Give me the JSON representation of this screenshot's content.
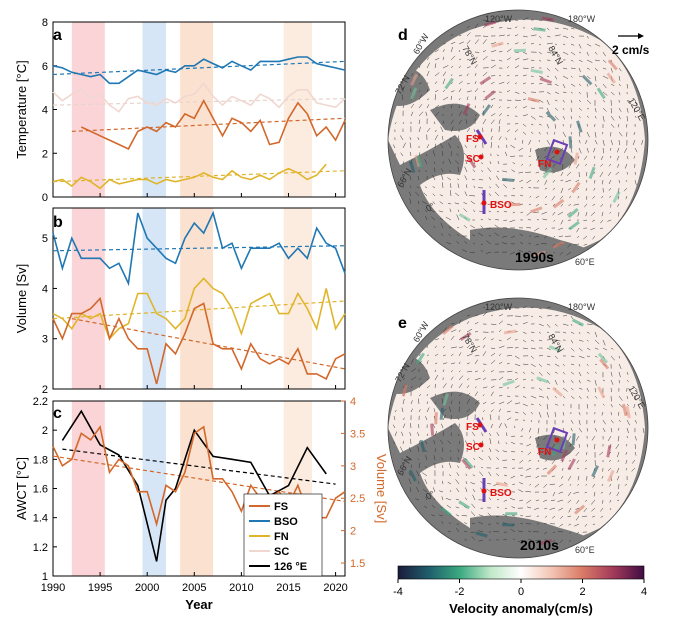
{
  "chart_data": [
    {
      "panel": "a",
      "type": "line",
      "ylabel": "Temperature [°C]",
      "ylim": [
        0,
        8
      ],
      "yticks": [
        "0",
        "2",
        "4",
        "6",
        "8"
      ],
      "xlim": [
        1990,
        2021
      ],
      "series": [
        {
          "name": "BSO",
          "color": "#1f77b4",
          "x": [
            1990,
            1991,
            1992,
            1993,
            1994,
            1995,
            1996,
            1997,
            1998,
            1999,
            2000,
            2001,
            2002,
            2003,
            2004,
            2005,
            2006,
            2007,
            2008,
            2009,
            2010,
            2011,
            2012,
            2013,
            2014,
            2015,
            2016,
            2017,
            2018,
            2019,
            2020,
            2021
          ],
          "y": [
            6.0,
            5.9,
            5.7,
            5.6,
            5.5,
            5.6,
            5.2,
            5.2,
            5.5,
            5.8,
            5.7,
            5.6,
            5.8,
            5.7,
            6.0,
            6.0,
            6.3,
            6.1,
            5.9,
            6.2,
            6.0,
            5.8,
            6.2,
            6.2,
            6.2,
            6.3,
            6.4,
            6.4,
            6.1,
            6.0,
            5.9,
            5.8
          ]
        },
        {
          "name": "SC",
          "color": "#f0d7d0",
          "x": [
            1990,
            1991,
            1992,
            1993,
            1994,
            1995,
            1996,
            1997,
            1998,
            1999,
            2000,
            2001,
            2002,
            2003,
            2004,
            2005,
            2006,
            2007,
            2008,
            2009,
            2010,
            2011,
            2012,
            2013,
            2014,
            2015,
            2016,
            2017,
            2018,
            2019,
            2020,
            2021
          ],
          "y": [
            4.8,
            4.4,
            4.7,
            4.9,
            4.5,
            4.7,
            4.2,
            3.9,
            4.5,
            4.6,
            4.3,
            4.2,
            4.5,
            4.3,
            4.6,
            4.7,
            5.2,
            4.6,
            4.2,
            4.6,
            4.4,
            4.2,
            4.7,
            4.5,
            4.1,
            4.6,
            4.9,
            4.9,
            4.3,
            4.2,
            4.1,
            4.5
          ]
        },
        {
          "name": "FS",
          "color": "#d2682b",
          "x": [
            1993,
            1994,
            1995,
            1996,
            1997,
            1998,
            1999,
            2000,
            2001,
            2002,
            2003,
            2004,
            2005,
            2006,
            2007,
            2008,
            2009,
            2010,
            2011,
            2012,
            2013,
            2014,
            2015,
            2016,
            2017,
            2018,
            2019,
            2020,
            2021
          ],
          "y": [
            3.2,
            3.0,
            2.8,
            2.6,
            2.4,
            2.2,
            3.0,
            3.2,
            3.0,
            3.4,
            3.2,
            3.8,
            3.6,
            4.4,
            3.6,
            2.8,
            3.6,
            3.4,
            3.0,
            3.5,
            2.4,
            2.5,
            3.6,
            4.3,
            3.8,
            2.8,
            3.2,
            2.6,
            3.5
          ]
        },
        {
          "name": "FN",
          "color": "#e0b52c",
          "x": [
            1990,
            1991,
            1992,
            1993,
            1994,
            1995,
            1996,
            1997,
            1998,
            1999,
            2000,
            2001,
            2002,
            2003,
            2004,
            2005,
            2006,
            2007,
            2008,
            2009,
            2010,
            2011,
            2012,
            2013,
            2014,
            2015,
            2016,
            2017,
            2018,
            2019
          ],
          "y": [
            0.7,
            0.8,
            0.5,
            0.9,
            0.7,
            0.4,
            0.8,
            0.6,
            0.7,
            0.8,
            0.8,
            0.6,
            0.8,
            0.7,
            0.8,
            0.9,
            1.1,
            0.9,
            0.8,
            1.2,
            0.9,
            0.8,
            1.0,
            0.8,
            1.1,
            1.3,
            1.1,
            0.8,
            1.0,
            1.5
          ]
        }
      ],
      "trends": [
        {
          "color": "#1f77b4",
          "x": [
            1990,
            2021
          ],
          "y": [
            5.6,
            6.2
          ]
        },
        {
          "color": "#e9d3cc",
          "x": [
            1990,
            2021
          ],
          "y": [
            4.2,
            4.5
          ]
        },
        {
          "color": "#d2682b",
          "x": [
            1992,
            2021
          ],
          "y": [
            3.0,
            3.6
          ]
        },
        {
          "color": "#e0b52c",
          "x": [
            1990,
            2021
          ],
          "y": [
            0.7,
            1.2
          ]
        }
      ]
    },
    {
      "panel": "b",
      "type": "line",
      "ylabel": "Volume [Sv]",
      "ylim": [
        2,
        5.6
      ],
      "yticks": [
        "2",
        "3",
        "4",
        "5"
      ],
      "xlim": [
        1990,
        2021
      ],
      "series": [
        {
          "name": "BSO",
          "color": "#1f77b4",
          "x": [
            1990,
            1991,
            1992,
            1993,
            1994,
            1995,
            1996,
            1997,
            1998,
            1999,
            2000,
            2001,
            2002,
            2003,
            2004,
            2005,
            2006,
            2007,
            2008,
            2009,
            2010,
            2011,
            2012,
            2013,
            2014,
            2015,
            2016,
            2017,
            2018,
            2019,
            2020,
            2021
          ],
          "y": [
            5.1,
            4.4,
            5.0,
            4.6,
            4.6,
            4.6,
            4.4,
            4.5,
            4.1,
            5.5,
            5.0,
            4.8,
            4.6,
            4.5,
            5.0,
            5.3,
            5.1,
            5.5,
            4.8,
            4.9,
            4.4,
            4.8,
            4.8,
            4.8,
            4.9,
            4.6,
            4.8,
            4.6,
            5.2,
            4.9,
            4.8,
            4.3
          ]
        },
        {
          "name": "FN",
          "color": "#e0b52c",
          "x": [
            1990,
            1991,
            1992,
            1993,
            1994,
            1995,
            1996,
            1997,
            1998,
            1999,
            2000,
            2001,
            2002,
            2003,
            2004,
            2005,
            2006,
            2007,
            2008,
            2009,
            2010,
            2011,
            2012,
            2013,
            2014,
            2015,
            2016,
            2017,
            2018,
            2019,
            2020,
            2021
          ],
          "y": [
            3.5,
            3.4,
            3.2,
            3.5,
            3.4,
            3.5,
            3.0,
            3.2,
            3.3,
            3.9,
            3.9,
            3.5,
            3.4,
            3.2,
            3.4,
            4.0,
            4.2,
            4.0,
            3.9,
            3.6,
            3.1,
            3.7,
            3.8,
            3.9,
            3.5,
            3.5,
            3.9,
            3.6,
            3.2,
            4.0,
            3.2,
            3.5
          ]
        },
        {
          "name": "FS",
          "color": "#d2682b",
          "x": [
            1990,
            1991,
            1992,
            1993,
            1994,
            1995,
            1996,
            1997,
            1998,
            1999,
            2000,
            2001,
            2002,
            2003,
            2004,
            2005,
            2006,
            2007,
            2008,
            2009,
            2010,
            2011,
            2012,
            2013,
            2014,
            2015,
            2016,
            2017,
            2018,
            2019,
            2020,
            2021
          ],
          "y": [
            3.4,
            3.0,
            3.5,
            3.5,
            3.6,
            3.8,
            3.0,
            3.4,
            3.0,
            2.8,
            2.8,
            2.1,
            2.9,
            2.7,
            3.1,
            3.6,
            3.7,
            2.9,
            2.8,
            2.8,
            2.4,
            2.9,
            2.6,
            2.5,
            2.6,
            2.5,
            2.8,
            2.3,
            2.3,
            2.2,
            2.6,
            2.7
          ]
        }
      ],
      "trends": [
        {
          "color": "#1f77b4",
          "x": [
            1990,
            2021
          ],
          "y": [
            4.75,
            4.85
          ]
        },
        {
          "color": "#e0b52c",
          "x": [
            1990,
            2021
          ],
          "y": [
            3.4,
            3.75
          ]
        },
        {
          "color": "#d2682b",
          "x": [
            1992,
            2021
          ],
          "y": [
            3.4,
            2.4
          ]
        }
      ]
    },
    {
      "panel": "c",
      "type": "line",
      "ylabel": "AWCT [°C]",
      "ylabel_right": "Volume [Sv]",
      "ylim": [
        1,
        2.2
      ],
      "yticks": [
        "1",
        "1.2",
        "1.4",
        "1.6",
        "1.8",
        "2",
        "2.2"
      ],
      "ylim_right": [
        1.3,
        4
      ],
      "yticks_right": [
        "1.5",
        "2",
        "2.5",
        "3",
        "3.5",
        "4"
      ],
      "xlim": [
        1990,
        2021
      ],
      "xticks": [
        "1990",
        "1995",
        "2000",
        "2005",
        "2010",
        "2015",
        "2020"
      ],
      "xlabel": "Year",
      "series": [
        {
          "name": "126 °E",
          "color": "#000000",
          "axis": "left",
          "x": [
            1991,
            1993,
            1995,
            1997,
            1999,
            2001,
            2002,
            2003,
            2005,
            2007,
            2009,
            2011,
            2013,
            2015,
            2017,
            2019
          ],
          "y": [
            1.93,
            2.13,
            1.9,
            1.83,
            1.62,
            1.1,
            1.52,
            1.6,
            2.0,
            1.82,
            1.8,
            1.78,
            1.55,
            1.62,
            1.88,
            1.7
          ]
        },
        {
          "name": "FS",
          "color": "#d2682b",
          "axis": "right",
          "x": [
            1990,
            1991,
            1992,
            1993,
            1994,
            1995,
            1996,
            1997,
            1998,
            1999,
            2000,
            2001,
            2002,
            2003,
            2004,
            2005,
            2006,
            2007,
            2008,
            2009,
            2010,
            2011,
            2012,
            2013,
            2014,
            2015,
            2016,
            2017,
            2018,
            2019,
            2020,
            2021
          ],
          "y": [
            3.3,
            3.0,
            3.1,
            3.5,
            3.4,
            3.6,
            2.9,
            3.1,
            3.0,
            2.6,
            2.6,
            2.1,
            2.7,
            2.6,
            2.9,
            3.5,
            3.6,
            2.8,
            2.8,
            2.6,
            2.3,
            2.7,
            2.5,
            2.5,
            2.6,
            2.4,
            2.7,
            2.3,
            2.2,
            2.2,
            2.5,
            2.6
          ]
        }
      ],
      "trends": [
        {
          "color": "#000000",
          "axis": "left",
          "x": [
            1991,
            2020
          ],
          "y": [
            1.87,
            1.63
          ]
        },
        {
          "color": "#d2682b",
          "axis": "right",
          "x": [
            1990,
            2021
          ],
          "y": [
            3.15,
            2.45
          ]
        }
      ],
      "legend": {
        "placement": "bottom-right",
        "entries": [
          {
            "name": "FS",
            "color": "#d2682b"
          },
          {
            "name": "BSO",
            "color": "#1f77b4"
          },
          {
            "name": "FN",
            "color": "#e0b52c"
          },
          {
            "name": "SC",
            "color": "#f0d7d0"
          },
          {
            "name": "126 °E",
            "color": "#000000"
          }
        ]
      }
    }
  ],
  "shaded_periods": [
    {
      "x": [
        1992,
        1995.5
      ],
      "color": "#fad4d6"
    },
    {
      "x": [
        1999.5,
        2002
      ],
      "color": "#d6e6f6"
    },
    {
      "x": [
        2003.5,
        2007
      ],
      "color": "#fbe1cf"
    },
    {
      "x": [
        2014.5,
        2017.5
      ],
      "color": "#fcece0"
    }
  ],
  "panel_letters": {
    "a": "a",
    "b": "b",
    "c": "c",
    "d": "d",
    "e": "e"
  },
  "maps": {
    "d": {
      "decade": "1990s"
    },
    "e": {
      "decade": "2010s"
    },
    "scale_label": "2 cm/s",
    "grid_labels_d": [
      "120°W",
      "180°W",
      "60°W",
      "78°N",
      "84°N",
      "72°N",
      "120°E",
      "66°N",
      "0°",
      "60°E"
    ],
    "grid_labels_e": [
      "120°W",
      "180°W",
      "60°W",
      "78°N",
      "84°N",
      "72°N",
      "120°E",
      "66°N",
      "0°",
      "60°E"
    ],
    "stations": [
      "FS",
      "SC",
      "FN",
      "BSO"
    ],
    "colorbar": {
      "label": "Velocity anomaly(cm/s)",
      "ticks": [
        "-4",
        "-2",
        "0",
        "2",
        "4"
      ],
      "colors": [
        "#1b1b3a",
        "#1f5e6b",
        "#3aa880",
        "#bfe8c8",
        "#ffffff",
        "#f3c4b4",
        "#d97a66",
        "#a23a5a",
        "#3f0d42"
      ]
    }
  }
}
